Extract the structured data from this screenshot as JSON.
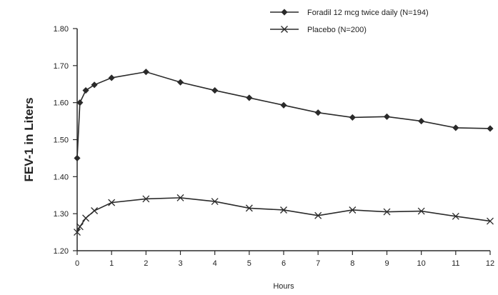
{
  "chart_data": {
    "type": "line",
    "xlabel": "Hours",
    "ylabel": "FEV-1 in Liters",
    "xlim": [
      0,
      12
    ],
    "ylim": [
      1.2,
      1.8
    ],
    "x_ticks": [
      "0",
      "1",
      "2",
      "3",
      "4",
      "5",
      "6",
      "7",
      "8",
      "9",
      "10",
      "11",
      "12"
    ],
    "y_ticks": [
      "1.20",
      "1.30",
      "1.40",
      "1.50",
      "1.60",
      "1.70",
      "1.80"
    ],
    "grid": false,
    "legend_position": "top-right",
    "series": [
      {
        "name": "Foradil 12 mcg twice daily (N=194)",
        "marker": "diamond",
        "x": [
          0,
          0.08,
          0.25,
          0.5,
          1,
          2,
          3,
          4,
          5,
          6,
          7,
          8,
          9,
          10,
          11,
          12
        ],
        "y": [
          1.45,
          1.6,
          1.633,
          1.648,
          1.667,
          1.683,
          1.655,
          1.633,
          1.613,
          1.593,
          1.573,
          1.56,
          1.562,
          1.55,
          1.532,
          1.53
        ]
      },
      {
        "name": "Placebo (N=200)",
        "marker": "x",
        "x": [
          0,
          0.08,
          0.25,
          0.5,
          1,
          2,
          3,
          4,
          5,
          6,
          7,
          8,
          9,
          10,
          11,
          12
        ],
        "y": [
          1.25,
          1.265,
          1.288,
          1.308,
          1.33,
          1.34,
          1.343,
          1.333,
          1.315,
          1.31,
          1.295,
          1.31,
          1.305,
          1.307,
          1.293,
          1.28
        ]
      }
    ]
  },
  "colors": {
    "line": "#2a2a2a",
    "text": "#222222"
  }
}
